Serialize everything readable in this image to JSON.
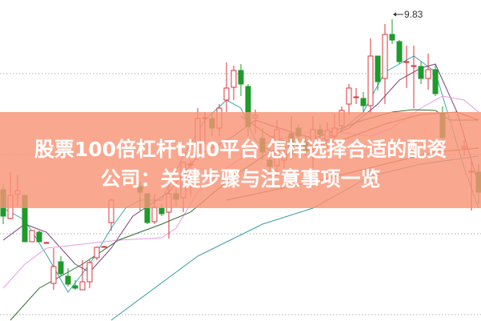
{
  "headline": {
    "line1": "股票100倍杠杆t加0平台 怎样选择合适的配资",
    "line2": "公司：关键步骤与注意事项一览"
  },
  "chart_data": {
    "type": "candlestick",
    "ylim": [
      6.06,
      10.07
    ],
    "grid": true,
    "gridlines": [
      9.15,
      8.14,
      7.15,
      6.14
    ],
    "high_marker": {
      "label": "9.83",
      "value": 9.83,
      "slot": 54
    },
    "colors": {
      "up": "#d8343c",
      "down": "#1f9a2b",
      "grid": "#b0b0b0",
      "banner": "#f99476"
    },
    "candles": [
      [
        7.7,
        7.37,
        7.77,
        7.27
      ],
      [
        7.34,
        7.63,
        7.92,
        7.33
      ],
      [
        7.64,
        7.69,
        7.88,
        7.49
      ],
      [
        7.63,
        7.05,
        7.63,
        7.05
      ],
      [
        7.05,
        7.19,
        7.19,
        7.05
      ],
      [
        7.17,
        7.05,
        7.19,
        7.05
      ],
      [
        7.04,
        7.04,
        7.05,
        7.03
      ],
      [
        6.53,
        6.74,
        6.97,
        6.45
      ],
      [
        6.8,
        6.65,
        6.87,
        6.62
      ],
      [
        6.62,
        6.52,
        6.72,
        6.49
      ],
      [
        6.5,
        6.47,
        6.57,
        6.45
      ],
      [
        6.45,
        6.55,
        6.82,
        6.45
      ],
      [
        6.55,
        6.79,
        6.82,
        6.47
      ],
      [
        6.85,
        6.98,
        6.99,
        6.82
      ],
      [
        6.99,
        6.99,
        7.0,
        6.98
      ],
      [
        7.29,
        7.57,
        7.59,
        7.19
      ],
      null,
      null,
      null,
      [
        7.74,
        7.67,
        7.8,
        7.44
      ],
      [
        7.65,
        7.29,
        7.65,
        7.27
      ],
      [
        7.3,
        7.48,
        7.65,
        7.27
      ],
      [
        7.47,
        7.4,
        7.52,
        7.37
      ],
      [
        7.42,
        7.65,
        7.79,
        7.09
      ],
      [
        7.65,
        7.58,
        7.72,
        7.49
      ],
      [
        7.6,
        8.04,
        8.04,
        7.42
      ],
      [
        8.02,
        8.02,
        8.07,
        7.62
      ],
      [
        8.17,
        8.59,
        8.72,
        8.07
      ],
      [
        8.59,
        8.6,
        8.67,
        8.27
      ],
      [
        8.59,
        8.47,
        8.67,
        8.37
      ],
      [
        8.47,
        8.72,
        8.77,
        8.37
      ],
      [
        8.82,
        8.97,
        9.29,
        8.67
      ],
      [
        8.98,
        9.19,
        9.25,
        8.82
      ],
      [
        9.19,
        9.02,
        9.27,
        8.87
      ],
      [
        8.99,
        8.49,
        9.02,
        8.37
      ],
      [
        8.6,
        8.63,
        8.7,
        8.4
      ],
      [
        8.34,
        8.17,
        8.47,
        8.07
      ],
      [
        8.07,
        7.99,
        8.22,
        7.87
      ],
      [
        8.0,
        8.45,
        8.57,
        7.87
      ],
      [
        8.07,
        8.17,
        8.22,
        7.97
      ],
      [
        8.4,
        8.15,
        8.62,
        8.07
      ],
      [
        8.47,
        8.37,
        8.52,
        8.27
      ],
      [
        8.29,
        8.19,
        8.37,
        8.12
      ],
      [
        8.24,
        8.45,
        8.62,
        7.97
      ],
      [
        8.45,
        8.39,
        8.52,
        8.27
      ],
      [
        8.32,
        8.44,
        8.54,
        8.22
      ],
      [
        8.37,
        8.47,
        8.65,
        8.27
      ],
      [
        8.5,
        8.69,
        8.74,
        8.42
      ],
      [
        8.77,
        8.97,
        9.02,
        8.64
      ],
      [
        8.86,
        8.86,
        8.97,
        8.77
      ],
      [
        8.84,
        8.75,
        8.92,
        8.65
      ],
      [
        8.75,
        9.37,
        9.59,
        8.65
      ],
      [
        9.37,
        9.05,
        9.37,
        8.94
      ],
      [
        9.09,
        9.64,
        9.77,
        8.77
      ],
      [
        9.64,
        9.57,
        9.83,
        9.52
      ],
      [
        9.55,
        9.3,
        9.57,
        9.27
      ],
      [
        9.29,
        9.3,
        9.5,
        8.97
      ],
      [
        9.24,
        9.25,
        9.5,
        8.72
      ],
      [
        9.24,
        9.09,
        9.3,
        9.02
      ],
      [
        9.09,
        9.2,
        9.4,
        8.95
      ],
      [
        9.2,
        8.9,
        9.27,
        8.87
      ],
      [
        8.65,
        8.35,
        8.74,
        8.27
      ],
      null,
      null,
      [
        8.22,
        8.24,
        8.32,
        8.12
      ],
      [
        7.92,
        7.93,
        8.07,
        7.44
      ],
      [
        7.92,
        7.67,
        8.02,
        7.52
      ]
    ],
    "candle_fields": [
      "open",
      "close",
      "high",
      "low"
    ],
    "lines": [
      {
        "color": "#3aa6b0",
        "points": [
          [
            0,
            7.47
          ],
          [
            3,
            7.32
          ],
          [
            6,
            6.89
          ],
          [
            9,
            6.42
          ],
          [
            12,
            6.77
          ],
          [
            15,
            7.22
          ],
          [
            17,
            7.47
          ],
          [
            19,
            7.57
          ],
          [
            22,
            7.57
          ],
          [
            25,
            8.12
          ],
          [
            28,
            8.57
          ],
          [
            31,
            8.82
          ],
          [
            33,
            8.72
          ],
          [
            35,
            8.32
          ],
          [
            38,
            8.12
          ],
          [
            42,
            8.17
          ],
          [
            46,
            8.37
          ],
          [
            50,
            8.67
          ],
          [
            53,
            9.17
          ],
          [
            55,
            9.27
          ],
          [
            57,
            9.37
          ],
          [
            60,
            9.17
          ],
          [
            62,
            8.57
          ],
          [
            64,
            7.97
          ],
          [
            66,
            7.47
          ]
        ]
      },
      {
        "color": "#7a3f7a",
        "points": [
          [
            0,
            7.07
          ],
          [
            3,
            7.27
          ],
          [
            6,
            7.17
          ],
          [
            10,
            6.77
          ],
          [
            12,
            6.67
          ],
          [
            15,
            6.97
          ],
          [
            18,
            7.37
          ],
          [
            23,
            7.67
          ],
          [
            27,
            8.12
          ],
          [
            32,
            8.37
          ],
          [
            35,
            8.57
          ],
          [
            40,
            8.42
          ],
          [
            44,
            8.32
          ],
          [
            48,
            8.47
          ],
          [
            52,
            8.77
          ],
          [
            55,
            9.07
          ],
          [
            58,
            9.22
          ],
          [
            60,
            9.27
          ],
          [
            63,
            8.67
          ],
          [
            65,
            8.07
          ],
          [
            66,
            7.77
          ]
        ]
      },
      {
        "color": "#e79be3",
        "points": [
          [
            0,
            6.47
          ],
          [
            3,
            6.77
          ],
          [
            6,
            6.97
          ],
          [
            11,
            7.02
          ],
          [
            16,
            7.07
          ],
          [
            22,
            7.1
          ],
          [
            24,
            7.22
          ],
          [
            27,
            7.67
          ],
          [
            31,
            7.97
          ],
          [
            36,
            8.27
          ],
          [
            42,
            8.42
          ],
          [
            46,
            8.42
          ],
          [
            51,
            8.37
          ],
          [
            54,
            8.47
          ],
          [
            58,
            8.72
          ],
          [
            61,
            8.87
          ],
          [
            64,
            8.82
          ],
          [
            66,
            8.67
          ]
        ]
      },
      {
        "color": "#2f6b2f",
        "points": [
          [
            1,
            6.07
          ],
          [
            5,
            6.47
          ],
          [
            11,
            6.77
          ],
          [
            16,
            7.07
          ],
          [
            22,
            7.27
          ],
          [
            26,
            7.42
          ],
          [
            32,
            7.87
          ],
          [
            37,
            8.17
          ],
          [
            44,
            8.37
          ],
          [
            50,
            8.57
          ],
          [
            54,
            8.67
          ],
          [
            57,
            8.7
          ],
          [
            60,
            8.69
          ],
          [
            62,
            8.57
          ],
          [
            66,
            8.57
          ]
        ]
      },
      {
        "color": "#9a4a3a",
        "points": [
          [
            33,
            8.62
          ],
          [
            37,
            8.37
          ],
          [
            42,
            8.22
          ],
          [
            47,
            8.32
          ],
          [
            53,
            8.52
          ],
          [
            58,
            8.64
          ],
          [
            63,
            8.67
          ],
          [
            66,
            8.57
          ]
        ]
      },
      {
        "color": "#8a5a40",
        "points": [
          [
            31,
            7.57
          ],
          [
            44,
            7.82
          ],
          [
            53,
            8.02
          ],
          [
            60,
            8.17
          ],
          [
            66,
            8.22
          ]
        ]
      },
      {
        "color": "#2f9aa8",
        "points": [
          [
            15,
            6.07
          ],
          [
            27,
            6.87
          ],
          [
            36,
            7.27
          ],
          [
            43,
            7.47
          ],
          [
            51,
            7.87
          ],
          [
            58,
            8.02
          ],
          [
            66,
            8.12
          ]
        ]
      }
    ]
  }
}
